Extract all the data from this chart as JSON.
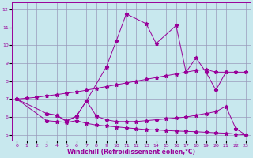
{
  "xlabel": "Windchill (Refroidissement éolien,°C)",
  "color": "#990099",
  "bg_color": "#c8e8ee",
  "grid_color": "#9999bb",
  "ylim": [
    4.7,
    12.4
  ],
  "xlim": [
    -0.5,
    23.5
  ],
  "yticks": [
    5,
    6,
    7,
    8,
    9,
    10,
    11,
    12
  ],
  "xticks": [
    0,
    1,
    2,
    3,
    4,
    5,
    6,
    7,
    8,
    9,
    10,
    11,
    12,
    13,
    14,
    15,
    16,
    17,
    18,
    19,
    20,
    21,
    22,
    23
  ],
  "line1_x": [
    0,
    3,
    4,
    5,
    6,
    7,
    9,
    10,
    11,
    13,
    14,
    16,
    17,
    18,
    19,
    20,
    21
  ],
  "line1_y": [
    7.0,
    6.2,
    6.1,
    5.8,
    6.05,
    6.9,
    8.8,
    10.25,
    11.75,
    11.2,
    10.1,
    11.1,
    8.5,
    9.3,
    8.5,
    7.5,
    8.5
  ],
  "line2_x": [
    0,
    1,
    2,
    3,
    4,
    5,
    6,
    7,
    8,
    9,
    10,
    11,
    12,
    13,
    14,
    15,
    16,
    17,
    18,
    19,
    20,
    21,
    22,
    23
  ],
  "line2_y": [
    7.0,
    7.05,
    7.1,
    7.18,
    7.25,
    7.33,
    7.4,
    7.5,
    7.6,
    7.7,
    7.8,
    7.9,
    8.0,
    8.1,
    8.2,
    8.3,
    8.4,
    8.5,
    8.6,
    8.65,
    8.5,
    8.5,
    8.5,
    8.5
  ],
  "line3_x": [
    3,
    4,
    5,
    6,
    7,
    8,
    9,
    10,
    11,
    12,
    13,
    14,
    15,
    16,
    17,
    18,
    19,
    20,
    21,
    22,
    23
  ],
  "line3_y": [
    6.2,
    6.1,
    5.75,
    6.05,
    6.9,
    6.05,
    5.85,
    5.75,
    5.75,
    5.75,
    5.8,
    5.85,
    5.9,
    5.95,
    6.0,
    6.1,
    6.2,
    6.3,
    6.6,
    5.35,
    5.0
  ],
  "line4_x": [
    0,
    3,
    4,
    5,
    6,
    7,
    8,
    9,
    10,
    11,
    12,
    13,
    14,
    15,
    16,
    17,
    18,
    19,
    20,
    21,
    22,
    23
  ],
  "line4_y": [
    7.0,
    5.8,
    5.75,
    5.7,
    5.8,
    5.65,
    5.55,
    5.5,
    5.45,
    5.4,
    5.35,
    5.3,
    5.28,
    5.25,
    5.22,
    5.2,
    5.18,
    5.15,
    5.12,
    5.1,
    5.05,
    5.0
  ]
}
